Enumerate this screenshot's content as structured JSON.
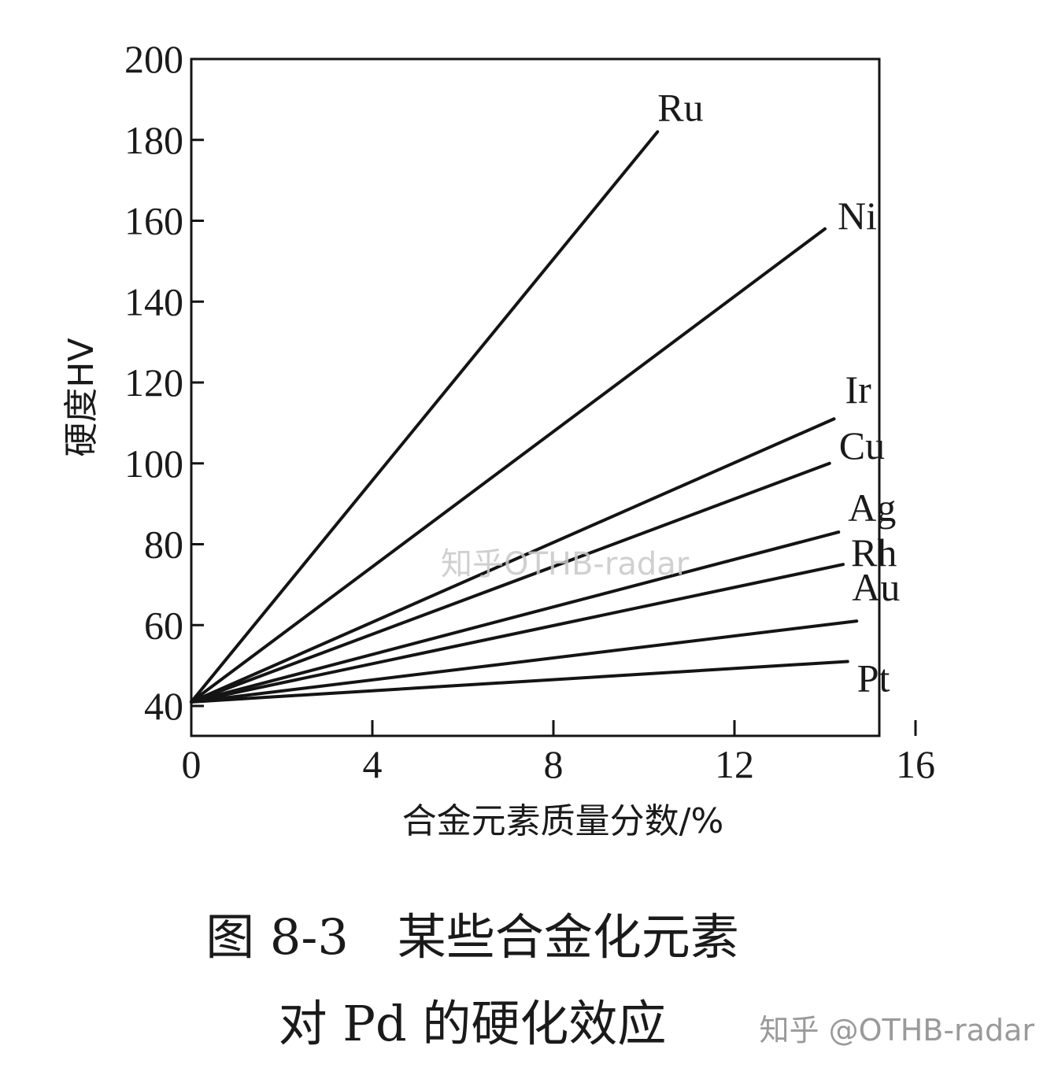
{
  "chart_data": {
    "type": "line",
    "xlabel": "合金元素质量分数/%",
    "ylabel": "硬度HV",
    "xlim": [
      0,
      16
    ],
    "ylim": [
      40,
      200
    ],
    "xticks": [
      0,
      4,
      8,
      12,
      16
    ],
    "yticks": [
      40,
      60,
      80,
      100,
      120,
      140,
      160,
      180,
      200
    ],
    "grid": false,
    "series": [
      {
        "name": "Ru",
        "x": [
          0,
          10.3
        ],
        "y": [
          41,
          182
        ]
      },
      {
        "name": "Ni",
        "x": [
          0,
          14.0
        ],
        "y": [
          41,
          158
        ]
      },
      {
        "name": "Ir",
        "x": [
          0,
          14.2
        ],
        "y": [
          41,
          111
        ]
      },
      {
        "name": "Cu",
        "x": [
          0,
          14.1
        ],
        "y": [
          41,
          100
        ]
      },
      {
        "name": "Ag",
        "x": [
          0,
          14.3
        ],
        "y": [
          41,
          83
        ]
      },
      {
        "name": "Rh",
        "x": [
          0,
          14.4
        ],
        "y": [
          41,
          75
        ]
      },
      {
        "name": "Au",
        "x": [
          0,
          14.7
        ],
        "y": [
          41,
          61
        ]
      },
      {
        "name": "Pt",
        "x": [
          0,
          14.5
        ],
        "y": [
          41,
          51
        ]
      }
    ]
  },
  "caption": {
    "line1": "图 8-3　某些合金化元素",
    "line2": "对 Pd 的硬化效应"
  },
  "watermarks": {
    "center": "知乎OTHB-radar",
    "corner": "知乎 @OTHB-radar"
  },
  "colors": {
    "line": "#141414",
    "background": "#ffffff"
  }
}
